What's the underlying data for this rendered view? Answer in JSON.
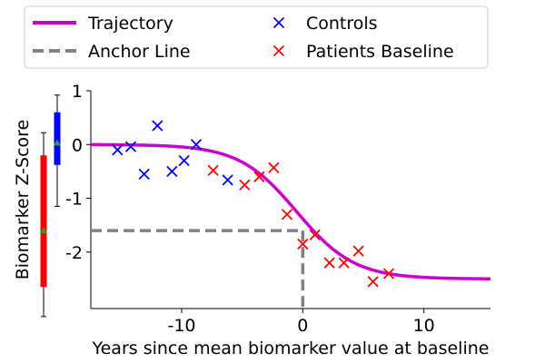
{
  "chart_data": {
    "type": "scatter",
    "xlabel": "Years since mean biomarker value at baseline",
    "ylabel": "Biomarker Z-Score",
    "xlim": [
      -17.5,
      15.5
    ],
    "ylim": [
      -3.05,
      1.0
    ],
    "x_ticks": [
      -10,
      0,
      10
    ],
    "x_tick_labels": [
      "-10",
      "0",
      "10"
    ],
    "y_ticks": [
      1,
      0,
      -1,
      -2
    ],
    "y_tick_labels": [
      "1",
      "0",
      "-1",
      "-2"
    ],
    "grid": false,
    "legend_position": "top",
    "legend": {
      "trajectory": "Trajectory",
      "anchor": "Anchor Line",
      "controls": "Controls",
      "patients": "Patients Baseline"
    },
    "colors": {
      "trajectory": "#cc00cc",
      "anchor": "#808080",
      "controls": "#0000ff",
      "patients": "#ff0000",
      "box_marker": "#2ca02c"
    },
    "trajectory": {
      "top": 0.0,
      "bottom": -2.5,
      "midpoint": -0.5,
      "slope": 0.42
    },
    "anchor_point": {
      "x": 0.0,
      "y": -1.6
    },
    "series": [
      {
        "name": "Controls",
        "marker": "x",
        "points": [
          [
            -15.3,
            -0.1
          ],
          [
            -14.2,
            -0.04
          ],
          [
            -13.1,
            -0.55
          ],
          [
            -12.0,
            0.35
          ],
          [
            -10.8,
            -0.5
          ],
          [
            -9.8,
            -0.3
          ],
          [
            -8.8,
            0.0
          ],
          [
            -6.2,
            -0.66
          ]
        ]
      },
      {
        "name": "Patients Baseline",
        "marker": "x",
        "points": [
          [
            -7.4,
            -0.48
          ],
          [
            -4.8,
            -0.75
          ],
          [
            -3.6,
            -0.6
          ],
          [
            -2.4,
            -0.43
          ],
          [
            -1.3,
            -1.3
          ],
          [
            0.0,
            -1.85
          ],
          [
            1.0,
            -1.68
          ],
          [
            2.2,
            -2.2
          ],
          [
            3.4,
            -2.2
          ],
          [
            4.6,
            -1.98
          ],
          [
            5.8,
            -2.55
          ],
          [
            7.1,
            -2.4
          ]
        ]
      }
    ],
    "box_plots": [
      {
        "name": "Controls",
        "color": "#0000ff",
        "whisker_low": -1.15,
        "q1": -0.38,
        "median": 0.03,
        "q3": 0.6,
        "whisker_high": 0.92
      },
      {
        "name": "Patients Baseline",
        "color": "#ff0000",
        "whisker_low": -3.2,
        "q1": -2.65,
        "median": -1.6,
        "q3": -0.2,
        "whisker_high": 0.22
      }
    ]
  }
}
